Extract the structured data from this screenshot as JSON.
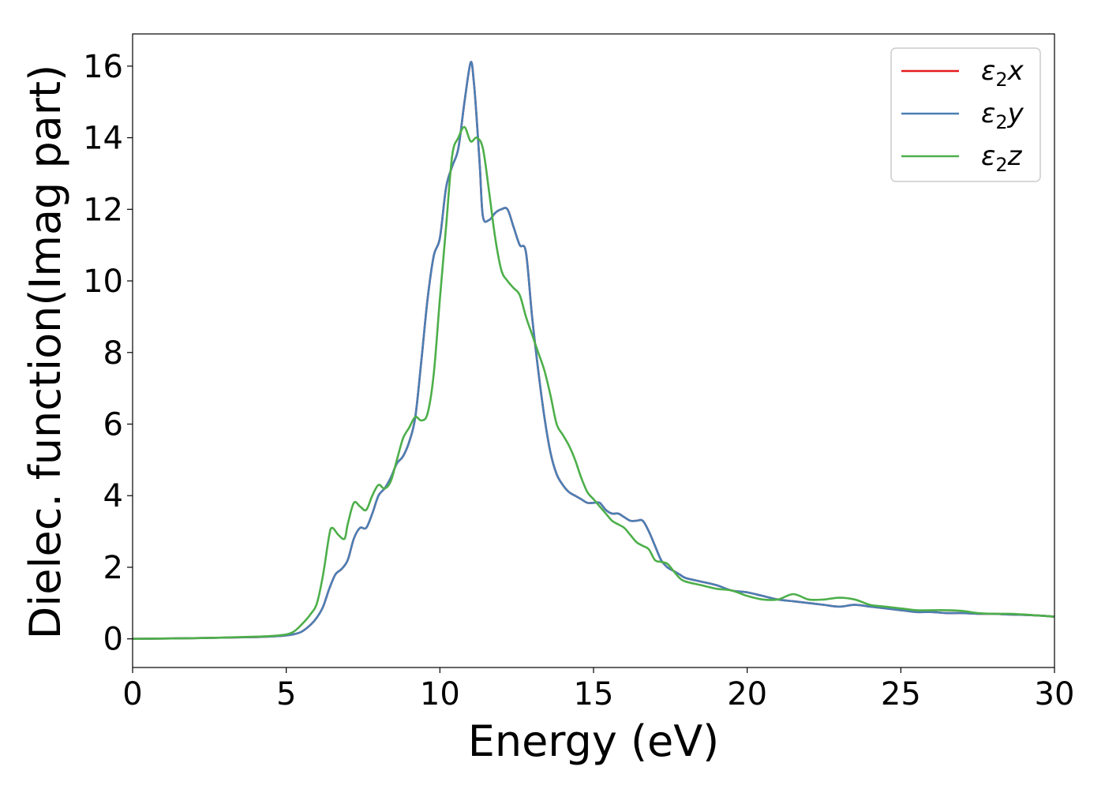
{
  "chart_data": {
    "type": "line",
    "title": "",
    "xlabel": "Energy (eV)",
    "ylabel": "Dielec. function(Imag part)",
    "xlim": [
      0,
      30
    ],
    "ylim": [
      -0.8,
      16.9
    ],
    "xticks": [
      0,
      5,
      10,
      15,
      20,
      25,
      30
    ],
    "yticks": [
      0,
      2,
      4,
      6,
      8,
      10,
      12,
      14,
      16
    ],
    "grid": false,
    "legend_position": "top-right",
    "series": [
      {
        "name": "ε2x",
        "legend_main": "ε",
        "legend_sub": "2",
        "legend_suffix": "x",
        "color": "#e41a1c",
        "x": [
          0,
          2,
          4,
          4.8,
          5.2,
          5.5,
          5.8,
          6.0,
          6.2,
          6.4,
          6.6,
          6.8,
          7.0,
          7.2,
          7.4,
          7.6,
          7.8,
          8.0,
          8.2,
          8.4,
          8.6,
          8.8,
          9.0,
          9.2,
          9.4,
          9.6,
          9.8,
          10.0,
          10.2,
          10.4,
          10.6,
          10.8,
          11.0,
          11.1,
          11.2,
          11.3,
          11.4,
          11.6,
          11.8,
          12.0,
          12.2,
          12.4,
          12.6,
          12.8,
          13.0,
          13.2,
          13.4,
          13.6,
          13.8,
          14.0,
          14.2,
          14.4,
          14.6,
          14.8,
          15.0,
          15.2,
          15.4,
          15.6,
          15.8,
          16.0,
          16.2,
          16.4,
          16.6,
          16.8,
          17.0,
          17.2,
          17.4,
          17.6,
          17.8,
          18.0,
          18.5,
          19.0,
          19.5,
          20.0,
          20.5,
          21.0,
          21.5,
          22.0,
          22.5,
          23.0,
          23.5,
          24.0,
          24.5,
          25.0,
          25.5,
          26.0,
          26.5,
          27.0,
          27.5,
          28.0,
          28.5,
          29.0,
          29.5,
          30.0
        ],
        "y": [
          0.0,
          0.02,
          0.05,
          0.08,
          0.12,
          0.2,
          0.4,
          0.6,
          0.9,
          1.4,
          1.8,
          1.95,
          2.2,
          2.8,
          3.1,
          3.1,
          3.5,
          4.0,
          4.2,
          4.5,
          4.9,
          5.1,
          5.5,
          6.2,
          7.8,
          9.5,
          10.7,
          11.2,
          12.6,
          13.2,
          13.7,
          15.0,
          16.1,
          15.6,
          14.5,
          13.2,
          11.8,
          11.7,
          11.9,
          12.0,
          12.0,
          11.5,
          11.0,
          10.8,
          9.0,
          7.5,
          6.2,
          5.2,
          4.6,
          4.3,
          4.1,
          4.0,
          3.9,
          3.8,
          3.8,
          3.8,
          3.6,
          3.5,
          3.5,
          3.4,
          3.3,
          3.3,
          3.3,
          3.0,
          2.6,
          2.2,
          2.0,
          1.9,
          1.8,
          1.7,
          1.6,
          1.5,
          1.35,
          1.3,
          1.2,
          1.1,
          1.05,
          1.0,
          0.95,
          0.9,
          0.95,
          0.9,
          0.85,
          0.8,
          0.75,
          0.75,
          0.72,
          0.72,
          0.7,
          0.7,
          0.68,
          0.67,
          0.65,
          0.62
        ]
      },
      {
        "name": "ε2y",
        "legend_main": "ε",
        "legend_sub": "2",
        "legend_suffix": "y",
        "color": "#4a7fb5",
        "x": [
          0,
          2,
          4,
          4.8,
          5.2,
          5.5,
          5.8,
          6.0,
          6.2,
          6.4,
          6.6,
          6.8,
          7.0,
          7.2,
          7.4,
          7.6,
          7.8,
          8.0,
          8.2,
          8.4,
          8.6,
          8.8,
          9.0,
          9.2,
          9.4,
          9.6,
          9.8,
          10.0,
          10.2,
          10.4,
          10.6,
          10.8,
          11.0,
          11.1,
          11.2,
          11.3,
          11.4,
          11.6,
          11.8,
          12.0,
          12.2,
          12.4,
          12.6,
          12.8,
          13.0,
          13.2,
          13.4,
          13.6,
          13.8,
          14.0,
          14.2,
          14.4,
          14.6,
          14.8,
          15.0,
          15.2,
          15.4,
          15.6,
          15.8,
          16.0,
          16.2,
          16.4,
          16.6,
          16.8,
          17.0,
          17.2,
          17.4,
          17.6,
          17.8,
          18.0,
          18.5,
          19.0,
          19.5,
          20.0,
          20.5,
          21.0,
          21.5,
          22.0,
          22.5,
          23.0,
          23.5,
          24.0,
          24.5,
          25.0,
          25.5,
          26.0,
          26.5,
          27.0,
          27.5,
          28.0,
          28.5,
          29.0,
          29.5,
          30.0
        ],
        "y": [
          0.0,
          0.02,
          0.05,
          0.08,
          0.12,
          0.2,
          0.4,
          0.6,
          0.9,
          1.4,
          1.8,
          1.95,
          2.2,
          2.8,
          3.1,
          3.1,
          3.5,
          4.0,
          4.2,
          4.5,
          4.9,
          5.1,
          5.5,
          6.2,
          7.8,
          9.5,
          10.7,
          11.2,
          12.6,
          13.2,
          13.7,
          15.0,
          16.1,
          15.6,
          14.5,
          13.2,
          11.8,
          11.7,
          11.9,
          12.0,
          12.0,
          11.5,
          11.0,
          10.8,
          9.0,
          7.5,
          6.2,
          5.2,
          4.6,
          4.3,
          4.1,
          4.0,
          3.9,
          3.8,
          3.8,
          3.8,
          3.6,
          3.5,
          3.5,
          3.4,
          3.3,
          3.3,
          3.3,
          3.0,
          2.6,
          2.2,
          2.0,
          1.9,
          1.8,
          1.7,
          1.6,
          1.5,
          1.35,
          1.3,
          1.2,
          1.1,
          1.05,
          1.0,
          0.95,
          0.9,
          0.95,
          0.9,
          0.85,
          0.8,
          0.75,
          0.75,
          0.72,
          0.72,
          0.7,
          0.7,
          0.68,
          0.67,
          0.65,
          0.62
        ]
      },
      {
        "name": "ε2z",
        "legend_main": "ε",
        "legend_sub": "2",
        "legend_suffix": "z",
        "color": "#4daf4a",
        "x": [
          0,
          2,
          4,
          4.8,
          5.2,
          5.5,
          5.8,
          6.0,
          6.2,
          6.4,
          6.5,
          6.7,
          6.9,
          7.0,
          7.2,
          7.4,
          7.6,
          7.8,
          8.0,
          8.2,
          8.4,
          8.6,
          8.8,
          9.0,
          9.2,
          9.4,
          9.6,
          9.8,
          10.0,
          10.2,
          10.4,
          10.6,
          10.8,
          11.0,
          11.2,
          11.4,
          11.6,
          11.8,
          12.0,
          12.2,
          12.4,
          12.6,
          12.8,
          13.0,
          13.2,
          13.4,
          13.6,
          13.8,
          14.0,
          14.2,
          14.4,
          14.6,
          14.8,
          15.0,
          15.2,
          15.4,
          15.6,
          15.8,
          16.0,
          16.2,
          16.4,
          16.6,
          16.8,
          17.0,
          17.2,
          17.4,
          17.6,
          17.8,
          18.0,
          18.5,
          19.0,
          19.5,
          20.0,
          20.5,
          21.0,
          21.5,
          22.0,
          22.5,
          23.0,
          23.5,
          24.0,
          24.5,
          25.0,
          25.5,
          26.0,
          26.5,
          27.0,
          27.5,
          28.0,
          28.5,
          29.0,
          29.5,
          30.0
        ],
        "y": [
          0.0,
          0.02,
          0.06,
          0.1,
          0.18,
          0.4,
          0.7,
          1.0,
          1.8,
          2.9,
          3.1,
          2.9,
          2.8,
          3.2,
          3.8,
          3.7,
          3.6,
          4.0,
          4.3,
          4.2,
          4.4,
          5.0,
          5.6,
          5.9,
          6.2,
          6.1,
          6.3,
          7.4,
          9.5,
          11.5,
          13.5,
          14.0,
          14.3,
          13.9,
          14.0,
          13.7,
          12.5,
          11.2,
          10.3,
          10.0,
          9.8,
          9.6,
          9.0,
          8.5,
          8.0,
          7.5,
          6.8,
          6.0,
          5.7,
          5.4,
          5.0,
          4.5,
          4.1,
          3.9,
          3.7,
          3.5,
          3.3,
          3.2,
          3.1,
          2.9,
          2.7,
          2.6,
          2.5,
          2.2,
          2.15,
          2.1,
          1.9,
          1.7,
          1.6,
          1.5,
          1.4,
          1.35,
          1.2,
          1.1,
          1.1,
          1.25,
          1.1,
          1.1,
          1.15,
          1.1,
          0.95,
          0.9,
          0.85,
          0.8,
          0.8,
          0.8,
          0.78,
          0.72,
          0.7,
          0.7,
          0.68,
          0.65,
          0.62
        ]
      }
    ]
  }
}
